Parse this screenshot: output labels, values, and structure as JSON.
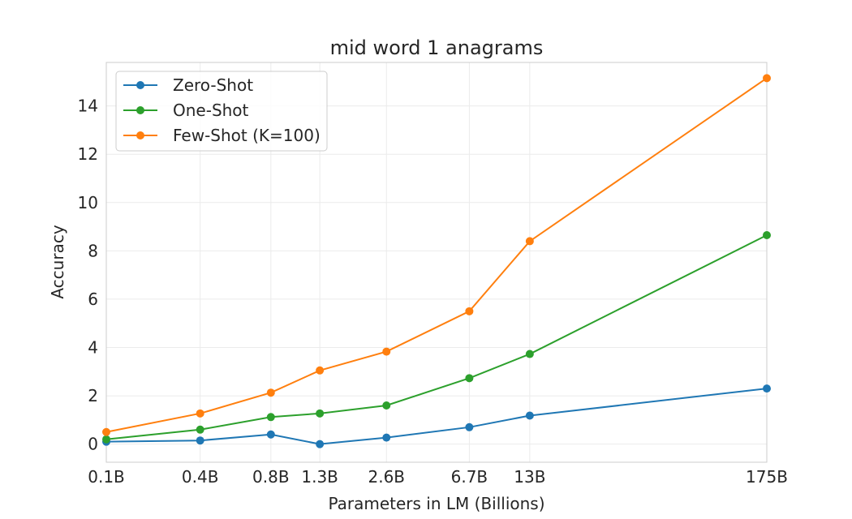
{
  "chart_data": {
    "type": "line",
    "title": "mid word 1 anagrams",
    "xlabel": "Parameters in LM (Billions)",
    "ylabel": "Accuracy",
    "categories": [
      "0.1B",
      "0.4B",
      "0.8B",
      "1.3B",
      "2.6B",
      "6.7B",
      "13B",
      "175B"
    ],
    "x": [
      0.125,
      0.35,
      0.76,
      1.3,
      2.7,
      6.7,
      13,
      175
    ],
    "ylim": [
      -0.75,
      15.8
    ],
    "yticks": [
      0,
      2,
      4,
      6,
      8,
      10,
      12,
      14
    ],
    "grid": true,
    "legend_position": "top-left",
    "series": [
      {
        "name": "Zero-Shot",
        "color": "#1f77b4",
        "values": [
          0.1,
          0.15,
          0.4,
          0.0,
          0.27,
          0.7,
          1.18,
          2.3
        ]
      },
      {
        "name": "One-Shot",
        "color": "#2ca02c",
        "values": [
          0.2,
          0.6,
          1.12,
          1.27,
          1.6,
          2.73,
          3.73,
          8.65
        ]
      },
      {
        "name": "Few-Shot (K=100)",
        "color": "#ff7f0e",
        "values": [
          0.5,
          1.27,
          2.13,
          3.05,
          3.83,
          5.5,
          8.4,
          15.15
        ]
      }
    ]
  }
}
